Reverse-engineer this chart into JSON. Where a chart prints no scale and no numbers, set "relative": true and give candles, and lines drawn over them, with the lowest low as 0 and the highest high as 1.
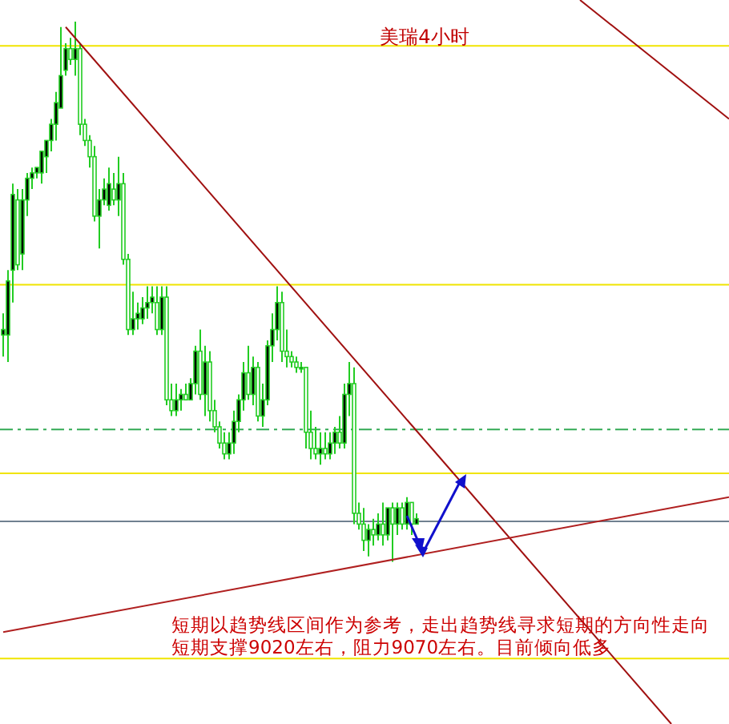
{
  "chart_data": {
    "type": "candlestick",
    "title": "美瑞4小时",
    "relative": true,
    "color": "#22cc22",
    "categories": [
      null,
      null,
      null,
      null,
      null,
      null,
      null,
      null,
      null,
      null,
      null,
      null,
      null,
      null,
      null,
      null,
      null,
      null,
      null,
      null,
      null,
      null,
      null,
      null,
      null,
      null,
      null,
      null,
      null,
      null,
      null,
      null,
      null,
      null,
      null,
      null,
      null,
      null,
      null,
      null,
      null,
      null,
      null,
      null,
      null,
      null,
      null,
      null,
      null,
      null,
      null,
      null,
      null,
      null,
      null,
      null,
      null,
      null,
      null,
      null,
      null,
      null,
      null,
      null,
      null,
      null,
      null,
      null,
      null,
      null,
      null,
      null,
      null,
      null,
      null,
      null,
      null,
      null,
      null,
      null,
      null,
      null,
      null,
      null,
      null,
      null,
      null,
      null,
      null,
      null,
      null,
      null,
      null,
      null,
      null,
      null,
      null,
      null,
      null,
      null,
      null,
      null,
      null,
      null,
      null,
      null,
      null,
      null,
      null,
      null,
      null,
      null,
      null,
      null,
      null,
      null,
      null,
      null,
      null,
      null,
      null,
      null,
      null,
      null,
      null,
      null,
      null,
      null,
      null,
      null,
      null,
      null,
      null,
      null,
      null,
      null,
      null,
      null,
      null,
      null,
      null,
      null,
      null,
      null,
      null,
      null,
      null,
      null,
      null,
      null,
      null,
      null
    ],
    "ohlc": [
      [
        0.42,
        0.46,
        0.38,
        0.43
      ],
      [
        0.42,
        0.54,
        0.37,
        0.52
      ],
      [
        0.54,
        0.7,
        0.48,
        0.68
      ],
      [
        0.67,
        0.69,
        0.54,
        0.55
      ],
      [
        0.57,
        0.69,
        0.54,
        0.67
      ],
      [
        0.67,
        0.72,
        0.64,
        0.71
      ],
      [
        0.71,
        0.73,
        0.69,
        0.72
      ],
      [
        0.72,
        0.73,
        0.71,
        0.73
      ],
      [
        0.72,
        0.76,
        0.7,
        0.76
      ],
      [
        0.75,
        0.78,
        0.72,
        0.78
      ],
      [
        0.78,
        0.82,
        0.76,
        0.81
      ],
      [
        0.81,
        0.87,
        0.78,
        0.85
      ],
      [
        0.84,
        0.99,
        0.84,
        0.9
      ],
      [
        0.91,
        0.96,
        0.9,
        0.95
      ],
      [
        0.95,
        0.97,
        0.92,
        0.93
      ],
      [
        0.93,
        1,
        0.9,
        0.95
      ],
      [
        0.95,
        0.96,
        0.79,
        0.81
      ],
      [
        0.81,
        0.82,
        0.77,
        0.78
      ],
      [
        0.78,
        0.79,
        0.73,
        0.75
      ],
      [
        0.75,
        0.77,
        0.63,
        0.64
      ],
      [
        0.64,
        0.69,
        0.58,
        0.67
      ],
      [
        0.67,
        0.71,
        0.66,
        0.69
      ],
      [
        0.66,
        0.73,
        0.65,
        0.7
      ],
      [
        0.69,
        0.72,
        0.66,
        0.67
      ],
      [
        0.67,
        0.75,
        0.64,
        0.7
      ],
      [
        0.7,
        0.72,
        0.55,
        0.56
      ],
      [
        0.56,
        0.57,
        0.42,
        0.43
      ],
      [
        0.43,
        0.5,
        0.42,
        0.45
      ],
      [
        0.45,
        0.48,
        0.43,
        0.46
      ],
      [
        0.45,
        0.49,
        0.44,
        0.47
      ],
      [
        0.47,
        0.51,
        0.45,
        0.48
      ],
      [
        0.48,
        0.51,
        0.46,
        0.49
      ],
      [
        0.48,
        0.51,
        0.42,
        0.43
      ],
      [
        0.43,
        0.51,
        0.42,
        0.49
      ],
      [
        0.49,
        0.51,
        0.29,
        0.3
      ],
      [
        0.3,
        0.33,
        0.27,
        0.28
      ],
      [
        0.28,
        0.33,
        0.27,
        0.3
      ],
      [
        0.3,
        0.32,
        0.28,
        0.31
      ],
      [
        0.31,
        0.33,
        0.3,
        0.3
      ],
      [
        0.3,
        0.34,
        0.3,
        0.33
      ],
      [
        0.33,
        0.4,
        0.31,
        0.39
      ],
      [
        0.39,
        0.43,
        0.3,
        0.31
      ],
      [
        0.31,
        0.4,
        0.27,
        0.37
      ],
      [
        0.37,
        0.39,
        0.26,
        0.28
      ],
      [
        0.28,
        0.3,
        0.24,
        0.25
      ],
      [
        0.25,
        0.26,
        0.21,
        0.22
      ],
      [
        0.22,
        0.24,
        0.19,
        0.2
      ],
      [
        0.2,
        0.24,
        0.19,
        0.22
      ],
      [
        0.22,
        0.28,
        0.2,
        0.26
      ],
      [
        0.26,
        0.31,
        0.24,
        0.3
      ],
      [
        0.3,
        0.37,
        0.28,
        0.35
      ],
      [
        0.35,
        0.4,
        0.3,
        0.31
      ],
      [
        0.31,
        0.38,
        0.29,
        0.36
      ],
      [
        0.36,
        0.37,
        0.26,
        0.27
      ],
      [
        0.27,
        0.33,
        0.25,
        0.3
      ],
      [
        0.3,
        0.41,
        0.29,
        0.4
      ],
      [
        0.4,
        0.46,
        0.37,
        0.43
      ],
      [
        0.43,
        0.51,
        0.41,
        0.48
      ],
      [
        0.48,
        0.5,
        0.37,
        0.39
      ],
      [
        0.39,
        0.43,
        0.36,
        0.38
      ],
      [
        0.38,
        0.39,
        0.36,
        0.37
      ],
      [
        0.37,
        0.38,
        0.35,
        0.36
      ],
      [
        0.36,
        0.37,
        0.35,
        0.36
      ],
      [
        0.36,
        0.36,
        0.21,
        0.24
      ],
      [
        0.24,
        0.28,
        0.19,
        0.21
      ],
      [
        0.21,
        0.25,
        0.19,
        0.2
      ],
      [
        0.2,
        0.24,
        0.18,
        0.21
      ],
      [
        0.21,
        0.24,
        0.19,
        0.2
      ],
      [
        0.2,
        0.24,
        0.19,
        0.22
      ],
      [
        0.22,
        0.25,
        0.2,
        0.24
      ],
      [
        0.24,
        0.27,
        0.21,
        0.22
      ],
      [
        0.22,
        0.33,
        0.21,
        0.31
      ],
      [
        0.31,
        0.37,
        0.27,
        0.33
      ],
      [
        0.33,
        0.36,
        0.07,
        0.09
      ],
      [
        0.09,
        0.11,
        0.06,
        0.07
      ],
      [
        0.07,
        0.1,
        0.02,
        0.04
      ],
      [
        0.04,
        0.07,
        0.01,
        0.06
      ],
      [
        0.06,
        0.08,
        0.03,
        0.05
      ],
      [
        0.05,
        0.09,
        0.04,
        0.07
      ],
      [
        0.07,
        0.11,
        0.03,
        0.05
      ],
      [
        0.05,
        0.1,
        0.04,
        0.1
      ],
      [
        0.1,
        0.11,
        0,
        0.07
      ],
      [
        0.07,
        0.11,
        0.05,
        0.1
      ],
      [
        0.1,
        0.11,
        0.06,
        0.07
      ],
      [
        0.07,
        0.12,
        0.06,
        0.11
      ],
      [
        0.11,
        0.11,
        0.05,
        0.07
      ],
      [
        0.07,
        0.09,
        0.07,
        0.08
      ],
      null,
      null,
      null,
      null,
      null,
      null,
      null,
      null,
      null,
      null,
      null,
      null,
      null,
      null,
      null,
      null,
      null,
      null,
      null,
      null,
      null,
      null,
      null,
      null,
      null,
      null,
      null,
      null,
      null,
      null,
      null,
      null,
      null,
      null,
      null,
      null,
      null,
      null,
      null,
      null,
      null,
      null,
      null,
      null,
      null,
      null,
      null,
      null,
      null,
      null,
      null,
      null,
      null,
      null,
      null,
      null,
      null,
      null,
      null,
      null,
      null,
      null,
      null,
      null,
      null
    ],
    "series": [
      {
        "type": "line",
        "color": "#a01010",
        "values": [
          null,
          null,
          null,
          null,
          null,
          null,
          null,
          null,
          null,
          null,
          null,
          null,
          null,
          0.99,
          null,
          null,
          null,
          null,
          null,
          null,
          null,
          null,
          null,
          null,
          null,
          null,
          null,
          null,
          null,
          null,
          null,
          null,
          null,
          null,
          null,
          null,
          null,
          null,
          null,
          null,
          null,
          null,
          null,
          null,
          null,
          null,
          null,
          null,
          null,
          null,
          null,
          null,
          null,
          null,
          null,
          null,
          null,
          null,
          null,
          null,
          null,
          null,
          null,
          null,
          null,
          null,
          null,
          null,
          null,
          null,
          null,
          null,
          null,
          null,
          null,
          null,
          null,
          null,
          null,
          null,
          null,
          null,
          null,
          null,
          null,
          null,
          null,
          null,
          null,
          null,
          null,
          null,
          null,
          null,
          null,
          null,
          null,
          null,
          null,
          null,
          null,
          null,
          null,
          null,
          null,
          null,
          null,
          null,
          null,
          null,
          null,
          null,
          null,
          null,
          null,
          null,
          null,
          null,
          null,
          null,
          null,
          null,
          null,
          null,
          null,
          null,
          null,
          null,
          null,
          null,
          null,
          null,
          null,
          null,
          null,
          null,
          null,
          null,
          null,
          -0.3,
          null,
          null,
          null,
          null,
          null,
          null,
          null,
          null,
          null,
          null,
          null,
          null
        ]
      },
      {
        "type": "line",
        "color": "#a01010",
        "values": [
          null,
          null,
          null,
          null,
          null,
          null,
          null,
          null,
          null,
          null,
          null,
          null,
          null,
          null,
          null,
          null,
          null,
          null,
          null,
          null,
          null,
          null,
          null,
          null,
          null,
          null,
          null,
          null,
          null,
          null,
          null,
          null,
          null,
          null,
          null,
          null,
          null,
          null,
          null,
          null,
          null,
          null,
          null,
          null,
          null,
          null,
          null,
          null,
          null,
          null,
          null,
          null,
          null,
          null,
          null,
          null,
          null,
          null,
          null,
          null,
          null,
          null,
          null,
          null,
          null,
          null,
          null,
          null,
          null,
          null,
          null,
          null,
          null,
          null,
          null,
          null,
          null,
          null,
          null,
          null,
          null,
          null,
          null,
          null,
          null,
          null,
          null,
          null,
          null,
          null,
          null,
          null,
          null,
          null,
          null,
          null,
          null,
          null,
          null,
          null,
          null,
          null,
          null,
          null,
          null,
          null,
          null,
          null,
          null,
          null,
          null,
          null,
          null,
          null,
          null,
          null,
          null,
          null,
          null,
          null,
          1.04,
          null,
          null,
          null,
          null,
          null,
          null,
          null,
          null,
          null,
          null,
          null,
          null,
          null,
          null,
          null,
          null,
          null,
          null,
          null,
          null,
          null,
          null,
          null,
          null,
          null,
          null,
          null,
          null,
          null,
          null,
          0.82
        ]
      },
      {
        "type": "line",
        "color": "#b02020",
        "values": [
          -0.13,
          null,
          null,
          null,
          null,
          null,
          null,
          null,
          null,
          null,
          null,
          null,
          null,
          null,
          null,
          null,
          null,
          null,
          null,
          null,
          null,
          null,
          null,
          null,
          null,
          null,
          null,
          null,
          null,
          null,
          null,
          null,
          null,
          null,
          null,
          null,
          null,
          null,
          null,
          null,
          null,
          null,
          null,
          null,
          null,
          null,
          null,
          null,
          null,
          null,
          null,
          null,
          null,
          null,
          null,
          null,
          null,
          null,
          null,
          null,
          null,
          null,
          null,
          null,
          null,
          null,
          null,
          null,
          null,
          null,
          null,
          null,
          null,
          null,
          null,
          null,
          null,
          null,
          null,
          null,
          null,
          null,
          null,
          null,
          null,
          null,
          null,
          null,
          null,
          null,
          null,
          null,
          null,
          null,
          null,
          null,
          null,
          null,
          null,
          null,
          null,
          null,
          null,
          null,
          null,
          null,
          null,
          null,
          null,
          null,
          null,
          null,
          null,
          null,
          null,
          null,
          null,
          null,
          null,
          null,
          null,
          null,
          null,
          null,
          null,
          null,
          null,
          null,
          null,
          null,
          null,
          null,
          null,
          null,
          null,
          null,
          null,
          null,
          null,
          null,
          null,
          null,
          null,
          null,
          null,
          null,
          null,
          null,
          null,
          null,
          null,
          0.12
        ]
      }
    ],
    "ref_lines": [
      {
        "axis": "y",
        "value": 0.955,
        "color": "#f0e400"
      },
      {
        "axis": "y",
        "value": 0.513,
        "color": "#f0e400"
      },
      {
        "axis": "y",
        "value": 0.245,
        "color": "#33aa55",
        "line_style": "dashed"
      },
      {
        "axis": "y",
        "value": 0.164,
        "color": "#f0e400"
      },
      {
        "axis": "y",
        "value": 0.075,
        "color": "#708090"
      },
      {
        "axis": "y",
        "value": -0.179,
        "color": "#f0e400"
      }
    ],
    "annotations": [
      "短期以趋势线区间作为参考，走出趋势线寻求短期的方向性走向",
      "短期支撑9020左右，阻力9070左右。目前倾向低多"
    ]
  }
}
